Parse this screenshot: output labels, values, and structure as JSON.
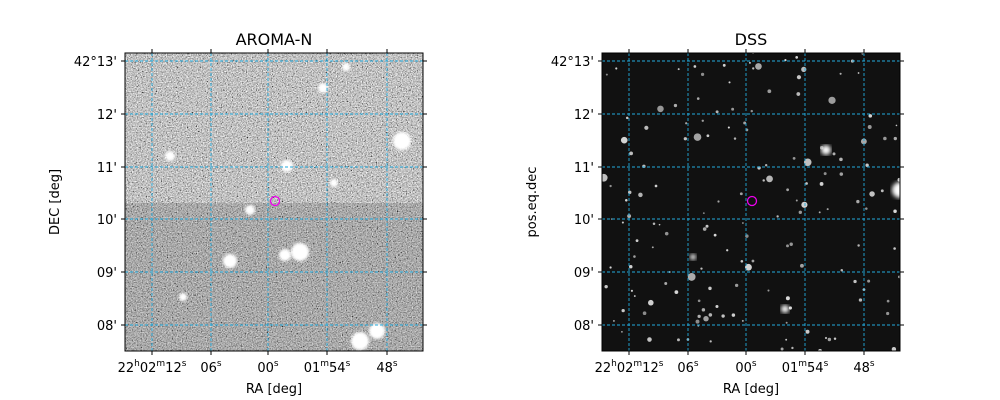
{
  "panels": [
    {
      "title": "AROMA-N",
      "xlabel": "RA [deg]",
      "ylabel": "DEC [deg]",
      "xticks": [
        [
          "22",
          "h",
          "02",
          "m",
          "12",
          "s"
        ],
        [
          "06",
          "s"
        ],
        [
          "00",
          "s"
        ],
        [
          "01",
          "m",
          "54",
          "s"
        ],
        [
          "48",
          "s"
        ]
      ],
      "yticks": [
        "42°13'",
        "12'",
        "11'",
        "10'",
        "09'",
        "08'"
      ]
    },
    {
      "title": "DSS",
      "xlabel": "RA [deg]",
      "ylabel": "pos.eq.dec",
      "xticks": [
        [
          "22",
          "h",
          "02",
          "m",
          "12",
          "s"
        ],
        [
          "06",
          "s"
        ],
        [
          "00",
          "s"
        ],
        [
          "01",
          "m",
          "54",
          "s"
        ],
        [
          "48",
          "s"
        ]
      ],
      "yticks": [
        "42°13'",
        "12'",
        "11'",
        "10'",
        "09'",
        "08'"
      ]
    }
  ]
}
